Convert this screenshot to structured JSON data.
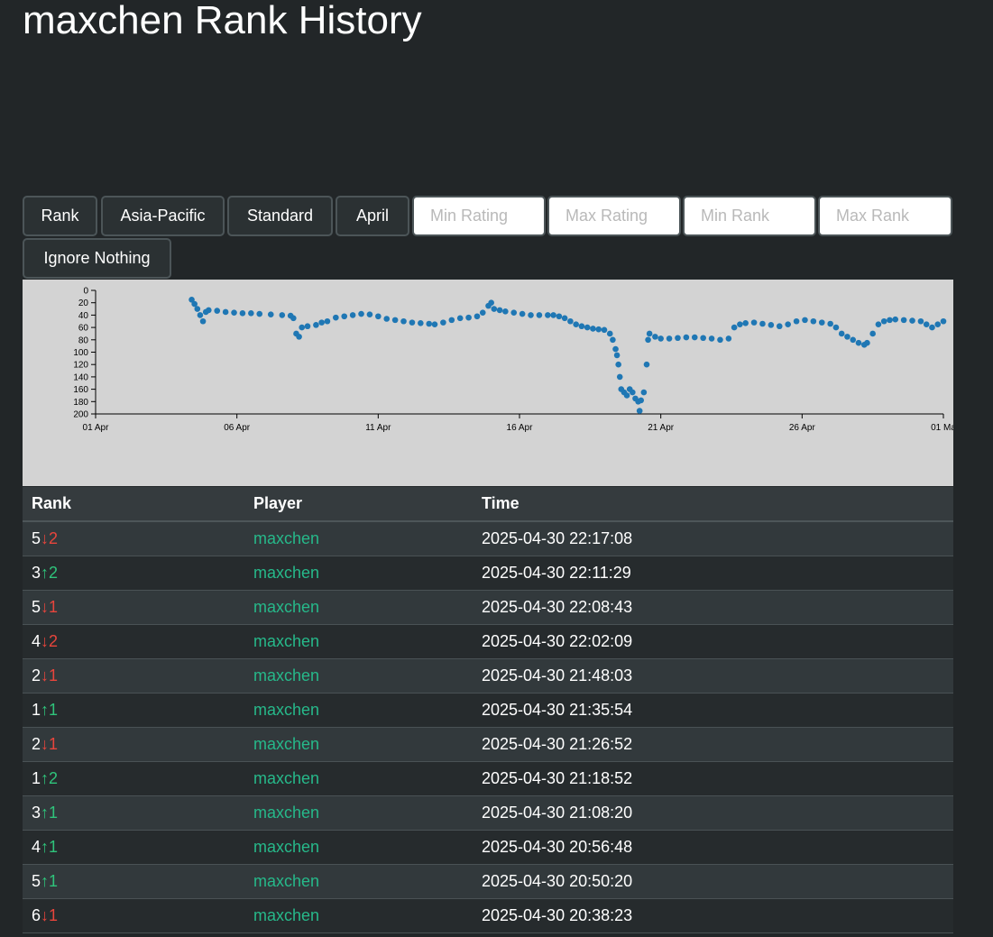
{
  "page": {
    "title": "maxchen Rank History"
  },
  "controls": {
    "buttons": [
      {
        "label": "Rank"
      },
      {
        "label": "Asia-Pacific"
      },
      {
        "label": "Standard"
      },
      {
        "label": "April"
      }
    ],
    "inputs": [
      {
        "placeholder": "Min Rating"
      },
      {
        "placeholder": "Max Rating"
      },
      {
        "placeholder": "Min Rank"
      },
      {
        "placeholder": "Max Rank"
      }
    ],
    "ignore_label": "Ignore Nothing"
  },
  "chart_data": {
    "type": "scatter",
    "x_ticks": [
      "01 Apr",
      "06 Apr",
      "11 Apr",
      "16 Apr",
      "21 Apr",
      "26 Apr",
      "01 Ma"
    ],
    "y_ticks": [
      0,
      20,
      40,
      60,
      80,
      100,
      120,
      140,
      160,
      180,
      200
    ],
    "ylim": [
      0,
      200
    ],
    "y_inverted": true,
    "xlim_days": [
      0,
      30
    ],
    "point_color": "#1f77b4",
    "grid": false,
    "series": [
      {
        "points": [
          [
            3.4,
            15
          ],
          [
            3.5,
            22
          ],
          [
            3.6,
            30
          ],
          [
            3.7,
            40
          ],
          [
            3.8,
            50
          ],
          [
            3.9,
            35
          ],
          [
            4.0,
            32
          ],
          [
            4.3,
            33
          ],
          [
            4.6,
            35
          ],
          [
            4.9,
            36
          ],
          [
            5.2,
            37
          ],
          [
            5.5,
            37
          ],
          [
            5.8,
            38
          ],
          [
            6.2,
            39
          ],
          [
            6.6,
            40
          ],
          [
            6.9,
            41
          ],
          [
            7.0,
            45
          ],
          [
            7.1,
            70
          ],
          [
            7.2,
            75
          ],
          [
            7.3,
            60
          ],
          [
            7.5,
            58
          ],
          [
            7.8,
            56
          ],
          [
            8.0,
            52
          ],
          [
            8.2,
            50
          ],
          [
            8.5,
            44
          ],
          [
            8.8,
            42
          ],
          [
            9.1,
            40
          ],
          [
            9.4,
            38
          ],
          [
            9.7,
            39
          ],
          [
            10.0,
            42
          ],
          [
            10.3,
            46
          ],
          [
            10.6,
            48
          ],
          [
            10.9,
            50
          ],
          [
            11.2,
            52
          ],
          [
            11.5,
            53
          ],
          [
            11.8,
            54
          ],
          [
            12.0,
            55
          ],
          [
            12.3,
            52
          ],
          [
            12.6,
            48
          ],
          [
            12.9,
            45
          ],
          [
            13.2,
            44
          ],
          [
            13.5,
            42
          ],
          [
            13.7,
            36
          ],
          [
            13.9,
            25
          ],
          [
            14.0,
            20
          ],
          [
            14.1,
            30
          ],
          [
            14.3,
            32
          ],
          [
            14.5,
            34
          ],
          [
            14.8,
            36
          ],
          [
            15.1,
            38
          ],
          [
            15.4,
            40
          ],
          [
            15.7,
            40
          ],
          [
            16.0,
            40
          ],
          [
            16.2,
            40
          ],
          [
            16.4,
            42
          ],
          [
            16.6,
            45
          ],
          [
            16.8,
            50
          ],
          [
            17.0,
            55
          ],
          [
            17.2,
            58
          ],
          [
            17.4,
            60
          ],
          [
            17.6,
            62
          ],
          [
            17.8,
            63
          ],
          [
            18.0,
            64
          ],
          [
            18.2,
            70
          ],
          [
            18.3,
            80
          ],
          [
            18.4,
            95
          ],
          [
            18.45,
            105
          ],
          [
            18.5,
            120
          ],
          [
            18.55,
            140
          ],
          [
            18.6,
            160
          ],
          [
            18.7,
            165
          ],
          [
            18.8,
            170
          ],
          [
            18.9,
            160
          ],
          [
            19.0,
            165
          ],
          [
            19.1,
            175
          ],
          [
            19.2,
            180
          ],
          [
            19.25,
            195
          ],
          [
            19.3,
            178
          ],
          [
            19.4,
            165
          ],
          [
            19.5,
            120
          ],
          [
            19.55,
            80
          ],
          [
            19.6,
            70
          ],
          [
            19.8,
            75
          ],
          [
            20.0,
            78
          ],
          [
            20.3,
            78
          ],
          [
            20.6,
            77
          ],
          [
            20.9,
            76
          ],
          [
            21.2,
            76
          ],
          [
            21.5,
            77
          ],
          [
            21.8,
            78
          ],
          [
            22.1,
            80
          ],
          [
            22.4,
            78
          ],
          [
            22.6,
            60
          ],
          [
            22.8,
            55
          ],
          [
            23.0,
            53
          ],
          [
            23.3,
            52
          ],
          [
            23.6,
            54
          ],
          [
            23.9,
            56
          ],
          [
            24.2,
            58
          ],
          [
            24.5,
            55
          ],
          [
            24.8,
            50
          ],
          [
            25.1,
            48
          ],
          [
            25.4,
            50
          ],
          [
            25.7,
            52
          ],
          [
            26.0,
            54
          ],
          [
            26.2,
            60
          ],
          [
            26.4,
            70
          ],
          [
            26.6,
            75
          ],
          [
            26.8,
            80
          ],
          [
            27.0,
            85
          ],
          [
            27.2,
            88
          ],
          [
            27.3,
            85
          ],
          [
            27.5,
            70
          ],
          [
            27.7,
            55
          ],
          [
            27.9,
            50
          ],
          [
            28.1,
            48
          ],
          [
            28.3,
            47
          ],
          [
            28.6,
            48
          ],
          [
            28.9,
            49
          ],
          [
            29.2,
            50
          ],
          [
            29.4,
            55
          ],
          [
            29.6,
            60
          ],
          [
            29.8,
            55
          ],
          [
            30.0,
            50
          ]
        ]
      }
    ]
  },
  "table": {
    "headers": {
      "rank": "Rank",
      "player": "Player",
      "time": "Time"
    },
    "rows": [
      {
        "rank": "5",
        "arrow": "↓",
        "delta": "2",
        "dir": "down",
        "player": "maxchen",
        "time": "2025-04-30 22:17:08"
      },
      {
        "rank": "3",
        "arrow": "↑",
        "delta": "2",
        "dir": "up",
        "player": "maxchen",
        "time": "2025-04-30 22:11:29"
      },
      {
        "rank": "5",
        "arrow": "↓",
        "delta": "1",
        "dir": "down",
        "player": "maxchen",
        "time": "2025-04-30 22:08:43"
      },
      {
        "rank": "4",
        "arrow": "↓",
        "delta": "2",
        "dir": "down",
        "player": "maxchen",
        "time": "2025-04-30 22:02:09"
      },
      {
        "rank": "2",
        "arrow": "↓",
        "delta": "1",
        "dir": "down",
        "player": "maxchen",
        "time": "2025-04-30 21:48:03"
      },
      {
        "rank": "1",
        "arrow": "↑",
        "delta": "1",
        "dir": "up",
        "player": "maxchen",
        "time": "2025-04-30 21:35:54"
      },
      {
        "rank": "2",
        "arrow": "↓",
        "delta": "1",
        "dir": "down",
        "player": "maxchen",
        "time": "2025-04-30 21:26:52"
      },
      {
        "rank": "1",
        "arrow": "↑",
        "delta": "2",
        "dir": "up",
        "player": "maxchen",
        "time": "2025-04-30 21:18:52"
      },
      {
        "rank": "3",
        "arrow": "↑",
        "delta": "1",
        "dir": "up",
        "player": "maxchen",
        "time": "2025-04-30 21:08:20"
      },
      {
        "rank": "4",
        "arrow": "↑",
        "delta": "1",
        "dir": "up",
        "player": "maxchen",
        "time": "2025-04-30 20:56:48"
      },
      {
        "rank": "5",
        "arrow": "↑",
        "delta": "1",
        "dir": "up",
        "player": "maxchen",
        "time": "2025-04-30 20:50:20"
      },
      {
        "rank": "6",
        "arrow": "↓",
        "delta": "1",
        "dir": "down",
        "player": "maxchen",
        "time": "2025-04-30 20:38:23"
      }
    ]
  }
}
